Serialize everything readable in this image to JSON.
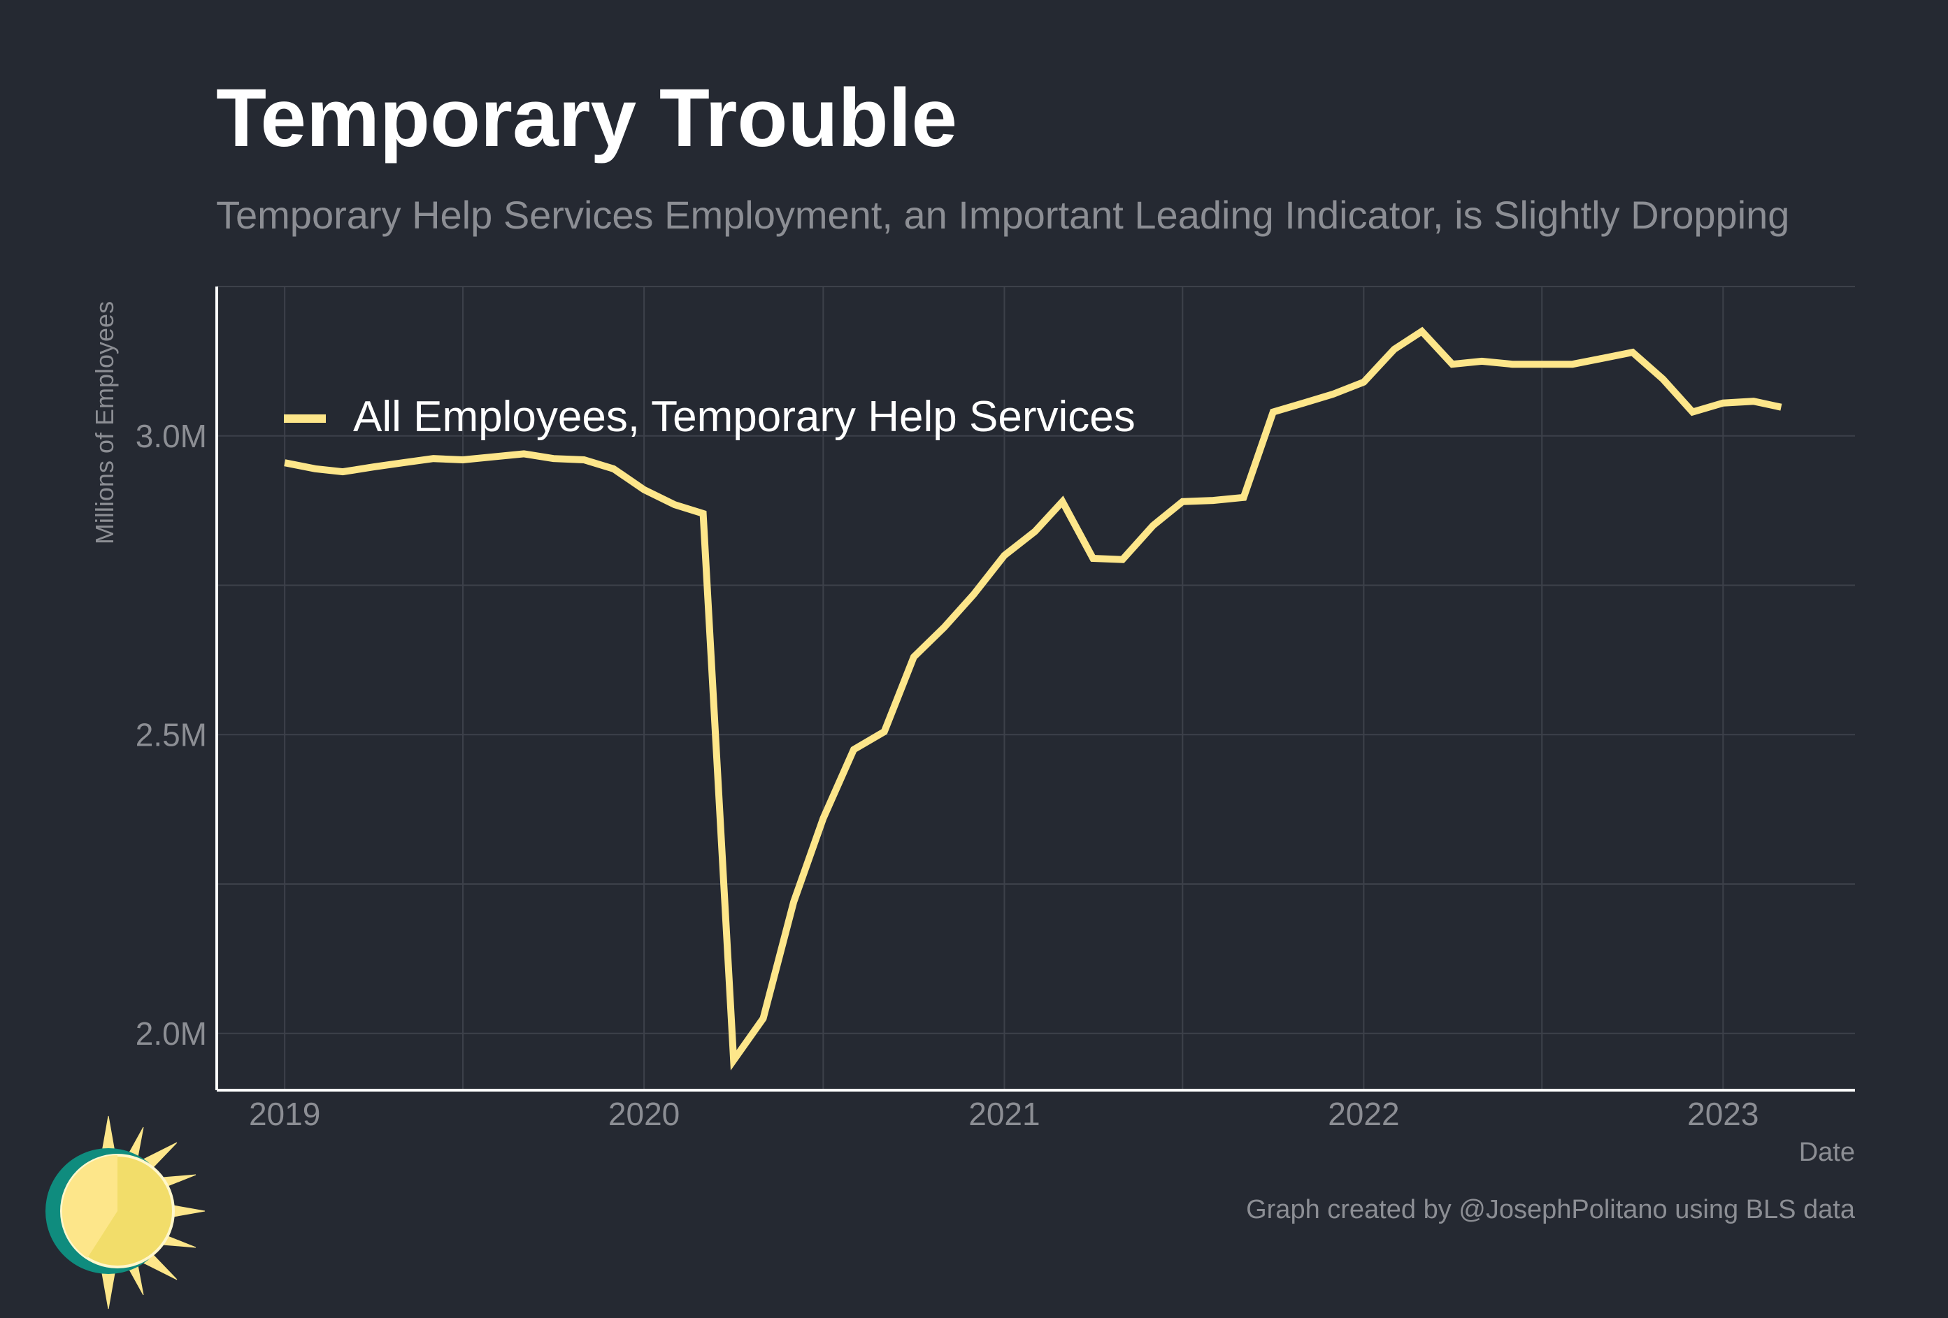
{
  "header": {
    "title": "Temporary Trouble",
    "subtitle": "Temporary Help Services Employment, an Important Leading Indicator, is Slightly Dropping"
  },
  "footer": {
    "caption": "Graph created by @JosephPolitano using BLS data"
  },
  "colors": {
    "background": "#252932",
    "line": "#fde68a",
    "grid": "#3d414a",
    "axis": "#ffffff",
    "muted_text": "#8c8e94",
    "logo_sun": "#fde68a",
    "logo_ring": "#0f8c7e"
  },
  "chart_data": {
    "type": "line",
    "xlabel": "Date",
    "ylabel": "Millions of Employees",
    "x_ticks": [
      "2019",
      "2020",
      "2021",
      "2022",
      "2023"
    ],
    "y_ticks": [
      "2.0M",
      "2.5M",
      "3.0M"
    ],
    "y_tick_values": [
      2.0,
      2.5,
      3.0
    ],
    "xlim": [
      "2018-10-24",
      "2023-05-15"
    ],
    "ylim": [
      1.905,
      3.25
    ],
    "grid": true,
    "legend_position": "top-left",
    "series": [
      {
        "name": "All Employees, Temporary Help Services",
        "x": [
          "2019-01",
          "2019-02",
          "2019-03",
          "2019-04",
          "2019-05",
          "2019-06",
          "2019-07",
          "2019-08",
          "2019-09",
          "2019-10",
          "2019-11",
          "2019-12",
          "2020-01",
          "2020-02",
          "2020-03",
          "2020-04",
          "2020-05",
          "2020-06",
          "2020-07",
          "2020-08",
          "2020-09",
          "2020-10",
          "2020-11",
          "2020-12",
          "2021-01",
          "2021-02",
          "2021-03",
          "2021-04",
          "2021-05",
          "2021-06",
          "2021-07",
          "2021-08",
          "2021-09",
          "2021-10",
          "2021-11",
          "2021-12",
          "2022-01",
          "2022-02",
          "2022-03",
          "2022-04",
          "2022-05",
          "2022-06",
          "2022-07",
          "2022-08",
          "2022-09",
          "2022-10",
          "2022-11",
          "2022-12",
          "2023-01",
          "2023-02",
          "2023-03"
        ],
        "values": [
          2.955,
          2.945,
          2.94,
          2.948,
          2.955,
          2.962,
          2.96,
          2.965,
          2.97,
          2.962,
          2.96,
          2.945,
          2.91,
          2.885,
          2.87,
          1.955,
          2.025,
          2.22,
          2.36,
          2.475,
          2.505,
          2.63,
          2.68,
          2.735,
          2.8,
          2.84,
          2.89,
          2.795,
          2.793,
          2.85,
          2.89,
          2.892,
          2.897,
          3.04,
          3.055,
          3.07,
          3.09,
          3.145,
          3.175,
          3.12,
          3.125,
          3.12,
          3.12,
          3.12,
          3.13,
          3.14,
          3.095,
          3.04,
          3.055,
          3.058,
          3.048
        ]
      }
    ]
  }
}
